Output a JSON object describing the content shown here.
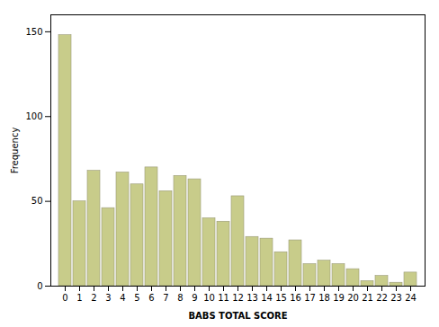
{
  "chart_data": {
    "type": "bar",
    "xlabel": "BABS TOTAL SCORE",
    "ylabel": "Frequency",
    "categories": [
      0,
      1,
      2,
      3,
      4,
      5,
      6,
      7,
      8,
      9,
      10,
      11,
      12,
      13,
      14,
      15,
      16,
      17,
      18,
      19,
      20,
      21,
      22,
      23,
      24
    ],
    "values": [
      148,
      50,
      68,
      46,
      67,
      60,
      70,
      56,
      65,
      63,
      40,
      38,
      53,
      29,
      28,
      20,
      27,
      13,
      15,
      13,
      10,
      3,
      6,
      2,
      8
    ],
    "color": "#c8cc8a",
    "ylim": [
      0,
      160
    ],
    "yticks": [
      0,
      50,
      100,
      150
    ],
    "grid": false
  }
}
